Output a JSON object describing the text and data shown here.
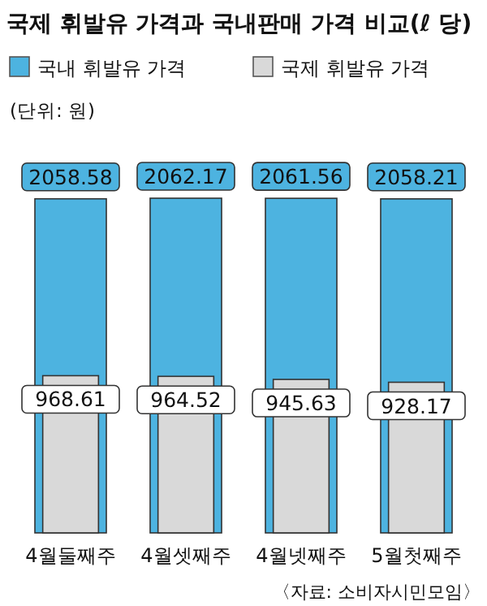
{
  "chart_data": {
    "type": "bar",
    "title": "국제 휘발유 가격과 국내판매 가격 비교(ℓ 당)",
    "subtitle": "(단위: 원)",
    "categories": [
      "4월둘째주",
      "4월셋째주",
      "4월넷째주",
      "5월첫째주"
    ],
    "series": [
      {
        "name": "국내 휘발유 가격",
        "color": "#4db3e0",
        "values": [
          2058.58,
          2062.17,
          2061.56,
          2058.21
        ]
      },
      {
        "name": "국제 휘발유 가격",
        "color": "#d9d9d9",
        "values": [
          968.61,
          964.52,
          945.63,
          928.17
        ]
      }
    ],
    "data_labels": true,
    "legend": "top",
    "annotations": [
      "〈자료: 소비자시민모임〉"
    ]
  }
}
